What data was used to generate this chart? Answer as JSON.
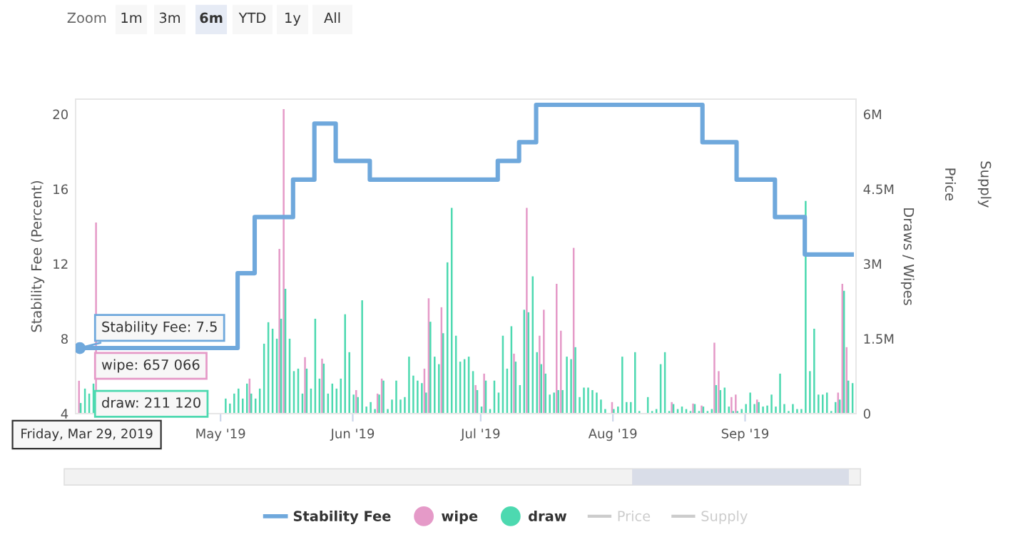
{
  "chart_data": {
    "type": "bar",
    "ylabel": "Stability Fee (Percent)",
    "y2label": "Draws / Wipes",
    "xlim": [
      "2019-03-28",
      "2019-09-27"
    ],
    "xticks": [
      {
        "value": "2019-05-01",
        "label": "May '19"
      },
      {
        "value": "2019-06-01",
        "label": "Jun '19"
      },
      {
        "value": "2019-07-01",
        "label": "Jul '19"
      },
      {
        "value": "2019-08-01",
        "label": "Aug '19"
      },
      {
        "value": "2019-09-01",
        "label": "Sep '19"
      }
    ],
    "ylim": [
      4,
      20.8
    ],
    "yticks": [
      4,
      8,
      12,
      16,
      20
    ],
    "y2lim": [
      0,
      6300000
    ],
    "y2ticks": [
      0,
      {
        "value": 1500000,
        "label": "1.5M"
      },
      {
        "value": 3000000,
        "label": "3M"
      },
      {
        "value": 4500000,
        "label": "4.5M"
      },
      {
        "value": 6000000,
        "label": "6M"
      }
    ],
    "legend": "bottom",
    "series": [
      {
        "name": "Stability Fee",
        "type": "step",
        "color": "#6fa8dc",
        "x": [
          "2019-03-29",
          "2019-05-05",
          "2019-05-09",
          "2019-05-18",
          "2019-05-23",
          "2019-05-28",
          "2019-06-05",
          "2019-07-05",
          "2019-07-10",
          "2019-07-14",
          "2019-08-22",
          "2019-08-30",
          "2019-09-08",
          "2019-09-15",
          "2019-09-26"
        ],
        "values": [
          7.5,
          11.5,
          14.5,
          16.5,
          19.5,
          17.5,
          16.5,
          17.5,
          18.5,
          20.5,
          18.5,
          16.5,
          14.5,
          12.5,
          12.5
        ]
      },
      {
        "name": "wipe",
        "axis": "y2",
        "color": "#e59ac8",
        "x": [
          "2019-03-29",
          "2019-04-02",
          "2019-05-08",
          "2019-05-15",
          "2019-05-16",
          "2019-05-21",
          "2019-05-25",
          "2019-06-02",
          "2019-06-07",
          "2019-06-08",
          "2019-06-18",
          "2019-06-19",
          "2019-06-22",
          "2019-06-30",
          "2019-07-02",
          "2019-07-09",
          "2019-07-12",
          "2019-07-15",
          "2019-07-16",
          "2019-07-19",
          "2019-07-20",
          "2019-07-23",
          "2019-08-01",
          "2019-08-15",
          "2019-08-20",
          "2019-08-22",
          "2019-08-25",
          "2019-08-26",
          "2019-08-29",
          "2019-08-30",
          "2019-09-04",
          "2019-09-23",
          "2019-09-24",
          "2019-09-25"
        ],
        "values": [
          657066,
          3830000,
          700000,
          3300000,
          6100000,
          1130000,
          1100000,
          470000,
          400000,
          700000,
          900000,
          2310000,
          2130000,
          570000,
          800000,
          1200000,
          4120000,
          1560000,
          2080000,
          2600000,
          1660000,
          3320000,
          230000,
          230000,
          200000,
          160000,
          1420000,
          850000,
          330000,
          380000,
          280000,
          420000,
          2600000,
          1330000
        ]
      },
      {
        "name": "draw",
        "axis": "y2",
        "color": "#4dd9b0",
        "x": [
          "2019-03-29",
          "2019-03-30",
          "2019-03-31",
          "2019-04-01",
          "2019-05-02",
          "2019-05-03",
          "2019-05-04",
          "2019-05-05",
          "2019-05-06",
          "2019-05-07",
          "2019-05-08",
          "2019-05-09",
          "2019-05-10",
          "2019-05-11",
          "2019-05-12",
          "2019-05-13",
          "2019-05-14",
          "2019-05-15",
          "2019-05-16",
          "2019-05-17",
          "2019-05-18",
          "2019-05-19",
          "2019-05-20",
          "2019-05-21",
          "2019-05-22",
          "2019-05-23",
          "2019-05-24",
          "2019-05-25",
          "2019-05-26",
          "2019-05-27",
          "2019-05-28",
          "2019-05-29",
          "2019-05-30",
          "2019-05-31",
          "2019-06-01",
          "2019-06-02",
          "2019-06-03",
          "2019-06-04",
          "2019-06-05",
          "2019-06-06",
          "2019-06-07",
          "2019-06-08",
          "2019-06-09",
          "2019-06-10",
          "2019-06-11",
          "2019-06-12",
          "2019-06-13",
          "2019-06-14",
          "2019-06-15",
          "2019-06-16",
          "2019-06-17",
          "2019-06-18",
          "2019-06-19",
          "2019-06-20",
          "2019-06-21",
          "2019-06-22",
          "2019-06-23",
          "2019-06-24",
          "2019-06-25",
          "2019-06-26",
          "2019-06-27",
          "2019-06-28",
          "2019-06-29",
          "2019-06-30",
          "2019-07-01",
          "2019-07-02",
          "2019-07-03",
          "2019-07-04",
          "2019-07-05",
          "2019-07-06",
          "2019-07-07",
          "2019-07-08",
          "2019-07-09",
          "2019-07-10",
          "2019-07-11",
          "2019-07-12",
          "2019-07-13",
          "2019-07-14",
          "2019-07-15",
          "2019-07-16",
          "2019-07-17",
          "2019-07-18",
          "2019-07-19",
          "2019-07-20",
          "2019-07-21",
          "2019-07-22",
          "2019-07-23",
          "2019-07-24",
          "2019-07-25",
          "2019-07-26",
          "2019-07-27",
          "2019-07-28",
          "2019-07-29",
          "2019-07-30",
          "2019-07-31",
          "2019-08-01",
          "2019-08-02",
          "2019-08-03",
          "2019-08-04",
          "2019-08-05",
          "2019-08-06",
          "2019-08-07",
          "2019-08-08",
          "2019-08-09",
          "2019-08-10",
          "2019-08-11",
          "2019-08-12",
          "2019-08-13",
          "2019-08-14",
          "2019-08-15",
          "2019-08-16",
          "2019-08-17",
          "2019-08-18",
          "2019-08-19",
          "2019-08-20",
          "2019-08-21",
          "2019-08-22",
          "2019-08-23",
          "2019-08-24",
          "2019-08-25",
          "2019-08-26",
          "2019-08-27",
          "2019-08-28",
          "2019-08-29",
          "2019-08-30",
          "2019-08-31",
          "2019-09-01",
          "2019-09-02",
          "2019-09-03",
          "2019-09-04",
          "2019-09-05",
          "2019-09-06",
          "2019-09-07",
          "2019-09-08",
          "2019-09-09",
          "2019-09-10",
          "2019-09-11",
          "2019-09-12",
          "2019-09-13",
          "2019-09-14",
          "2019-09-15",
          "2019-09-16",
          "2019-09-17",
          "2019-09-18",
          "2019-09-19",
          "2019-09-20",
          "2019-09-21",
          "2019-09-22",
          "2019-09-23",
          "2019-09-24",
          "2019-09-25",
          "2019-09-26"
        ],
        "values": [
          211120,
          500000,
          400000,
          600000,
          300000,
          200000,
          400000,
          500000,
          300000,
          600000,
          400000,
          300000,
          500000,
          1400000,
          1830000,
          1700000,
          1500000,
          1900000,
          2500000,
          1500000,
          850000,
          900000,
          400000,
          900000,
          500000,
          1900000,
          700000,
          1000000,
          400000,
          600000,
          500000,
          700000,
          1990000,
          1230000,
          380000,
          330000,
          2270000,
          140000,
          230000,
          90000,
          380000,
          660000,
          90000,
          280000,
          660000,
          280000,
          330000,
          1140000,
          760000,
          660000,
          610000,
          420000,
          1840000,
          1140000,
          990000,
          1610000,
          3030000,
          4120000,
          1560000,
          1040000,
          1090000,
          1140000,
          850000,
          470000,
          140000,
          660000,
          90000,
          660000,
          420000,
          1560000,
          900000,
          1750000,
          1040000,
          570000,
          2080000,
          2030000,
          2750000,
          1230000,
          990000,
          800000,
          380000,
          420000,
          470000,
          470000,
          1140000,
          1090000,
          1330000,
          330000,
          520000,
          520000,
          470000,
          420000,
          280000,
          90000,
          null,
          90000,
          140000,
          1140000,
          230000,
          230000,
          1230000,
          50000,
          null,
          330000,
          50000,
          90000,
          990000,
          1230000,
          50000,
          190000,
          90000,
          140000,
          90000,
          50000,
          190000,
          50000,
          140000,
          50000,
          90000,
          570000,
          470000,
          520000,
          140000,
          50000,
          50000,
          90000,
          190000,
          420000,
          190000,
          230000,
          140000,
          160000,
          380000,
          140000,
          800000,
          190000,
          50000,
          190000,
          90000,
          90000,
          4260000,
          850000,
          1700000,
          380000,
          380000,
          420000,
          50000,
          230000,
          280000,
          2460000,
          660000,
          610000
        ]
      }
    ],
    "annotations": [
      "Zoom",
      "1m",
      "3m",
      "6m",
      "YTD",
      "1y",
      "All",
      "Friday, Mar 29, 2019",
      {
        "text": "Stability Fee: 7.5",
        "x": "2019-03-29",
        "y": 7.5
      },
      "wipe: 657 066",
      "draw: 211 120",
      "Price",
      "Supply",
      "Price",
      "Supply"
    ]
  }
}
